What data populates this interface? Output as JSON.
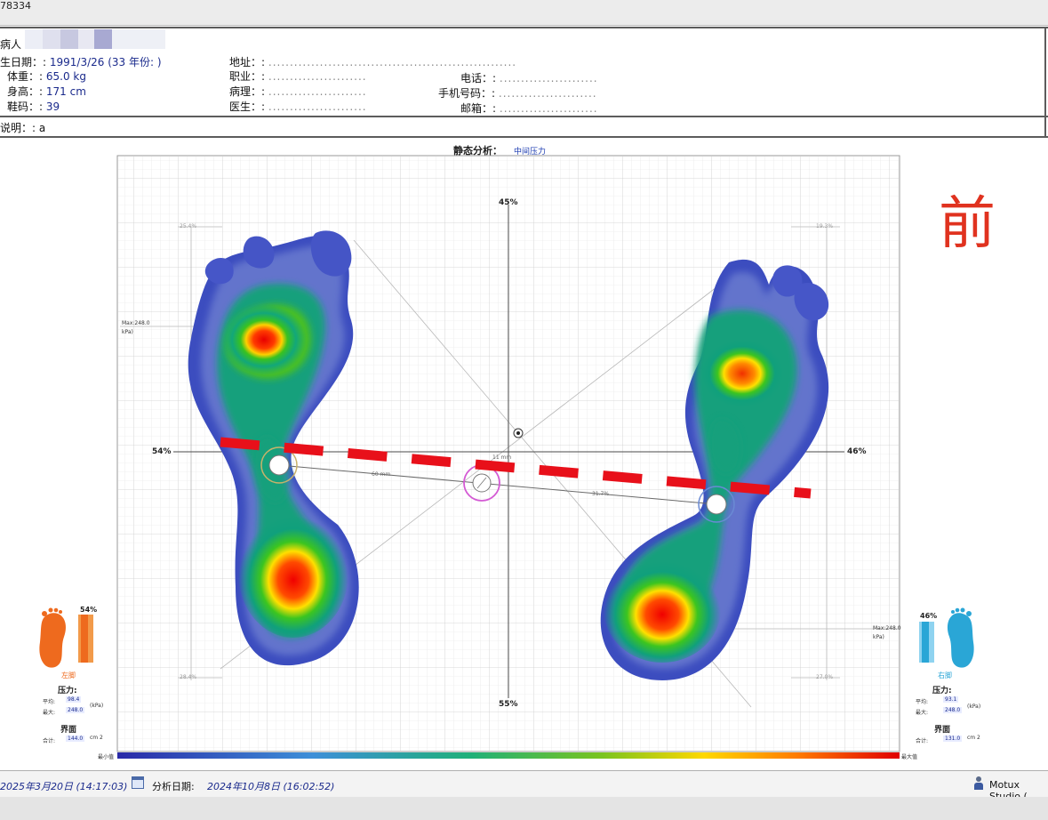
{
  "window": {
    "title": "78334"
  },
  "patient": {
    "name_label": "病人",
    "birth_label": "生日期：:",
    "birth_value": "1991/3/26 (33 年份: )",
    "weight_label": "体重：:",
    "weight_value": "65.0 kg",
    "height_label": "身高：:",
    "height_value": "171 cm",
    "shoe_label": "鞋码：:",
    "shoe_value": "39",
    "address_label": "地址：:",
    "address_value": "..........................................................",
    "job_label": "职业：:",
    "job_value": ".......................",
    "pathology_label": "病理：:",
    "pathology_value": ".......................",
    "doctor_label": "医生：:",
    "doctor_value": ".......................",
    "phone_label": "电话：:",
    "phone_value": ".......................",
    "mobile_label": "手机号码：:",
    "mobile_value": ".......................",
    "mail_label": "邮箱：:",
    "mail_value": "......................."
  },
  "notes": {
    "label": "说明：: a"
  },
  "analysis": {
    "title": "静态分析：",
    "mode": "中间压力",
    "annotation": "前",
    "top_pct": "45%",
    "bottom_pct": "55%",
    "left_pct": "54%",
    "right_pct": "46%",
    "corner_tl": "25.4%",
    "corner_tr": "19.3%",
    "corner_bl": "28.4%",
    "corner_br": "27.0%",
    "max_left": "Max:248.0",
    "max_left_unit": "kPa)",
    "max_right": "Max:248.0",
    "max_right_unit": "kPa)",
    "center_small_1": "11 mm",
    "center_small_2": "60 mm",
    "center_small_3": "31.7%",
    "scale_min": "最小值",
    "scale_max": "最大值"
  },
  "left_foot": {
    "pct": "54%",
    "name": "左脚",
    "pressure_label": "压力:",
    "avg_label": "平均:",
    "avg_value": "98.4",
    "max_label": "最大:",
    "max_value": "248.0",
    "unit": "(kPa)",
    "surface_label": "界面",
    "total_label": "合计:",
    "total_value": "144.0",
    "area_unit": "cm 2"
  },
  "right_foot": {
    "pct": "46%",
    "name": "右脚",
    "pressure_label": "压力:",
    "avg_label": "平均:",
    "avg_value": "93.1",
    "max_label": "最大:",
    "max_value": "248.0",
    "unit": "(kPa)",
    "surface_label": "界面",
    "total_label": "合计:",
    "total_value": "131.0",
    "area_unit": "cm 2"
  },
  "footer": {
    "date_value": "2025年3月20日 (14:17:03)",
    "analysis_label": "分析日期:",
    "analysis_value": "2024年10月8日 (16:02:52)",
    "app_name": "Motux Studio ("
  },
  "colors": {
    "accent_red": "#e0321f",
    "left_foot_orange": "#ee6a1e",
    "right_foot_cyan": "#2aa6d6",
    "text_blue": "#1a2a8c"
  }
}
